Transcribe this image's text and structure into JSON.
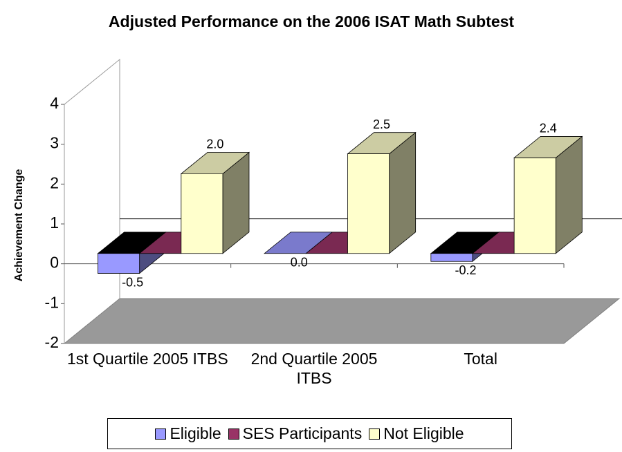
{
  "chart_data": {
    "type": "bar3d",
    "title": "Adjusted Performance on the 2006 ISAT Math Subtest",
    "y_label": "Achievement Change",
    "categories": [
      "1st Quartile 2005 ITBS",
      "2nd Quartile 2005 ITBS",
      "Total"
    ],
    "series": [
      {
        "name": "Eligible",
        "color": "#9999ff",
        "values": [
          -0.5,
          0,
          -0.2
        ],
        "value_labels": [
          "-0.5",
          "0.0",
          "-0.2"
        ]
      },
      {
        "name": "SES Participants",
        "color": "#993366",
        "values": [
          0,
          0,
          0
        ]
      },
      {
        "name": "Not Eligible",
        "color": "#ffffcc",
        "values": [
          2,
          2.5,
          2.4
        ],
        "value_labels": [
          "2.0",
          "2.5",
          "2.4"
        ]
      }
    ],
    "ylim": [
      -2,
      4
    ],
    "yticks": [
      -2,
      -1,
      0,
      1,
      2,
      3,
      4
    ],
    "legend": "bottom"
  }
}
